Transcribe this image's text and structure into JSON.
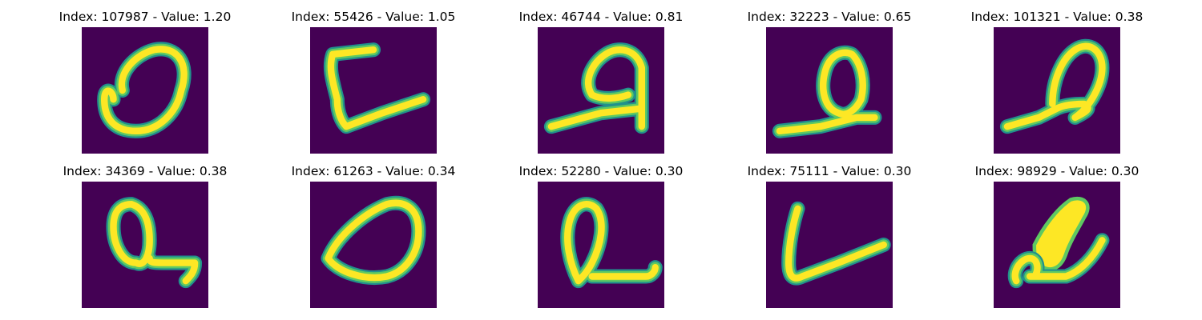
{
  "figure": {
    "panels": [
      {
        "title": "Index: 107987 - Value: 1.20",
        "index": 107987,
        "value": 1.2,
        "glyph": "loop-o"
      },
      {
        "title": "Index: 55426 - Value: 1.05",
        "index": 55426,
        "value": 1.05,
        "glyph": "bracket-l"
      },
      {
        "title": "Index: 46744 - Value: 0.81",
        "index": 46744,
        "value": 0.81,
        "glyph": "script-a"
      },
      {
        "title": "Index: 32223 - Value: 0.65",
        "index": 32223,
        "value": 0.65,
        "glyph": "loop-base"
      },
      {
        "title": "Index: 101321 - Value: 0.38",
        "index": 101321,
        "value": 0.38,
        "glyph": "leaning-loop"
      },
      {
        "title": "Index: 34369 - Value: 0.38",
        "index": 34369,
        "value": 0.38,
        "glyph": "script-q"
      },
      {
        "title": "Index: 61263 - Value: 0.34",
        "index": 61263,
        "value": 0.34,
        "glyph": "oval"
      },
      {
        "title": "Index: 52280 - Value: 0.30",
        "index": 52280,
        "value": 0.3,
        "glyph": "loop-tail"
      },
      {
        "title": "Index: 75111 - Value: 0.30",
        "index": 75111,
        "value": 0.3,
        "glyph": "check-l"
      },
      {
        "title": "Index: 98929 - Value: 0.30",
        "index": 98929,
        "value": 0.3,
        "glyph": "blob"
      }
    ],
    "colors": {
      "background": "#440154",
      "outer": "#21918c",
      "mid": "#5ec962",
      "core": "#fde725"
    }
  }
}
